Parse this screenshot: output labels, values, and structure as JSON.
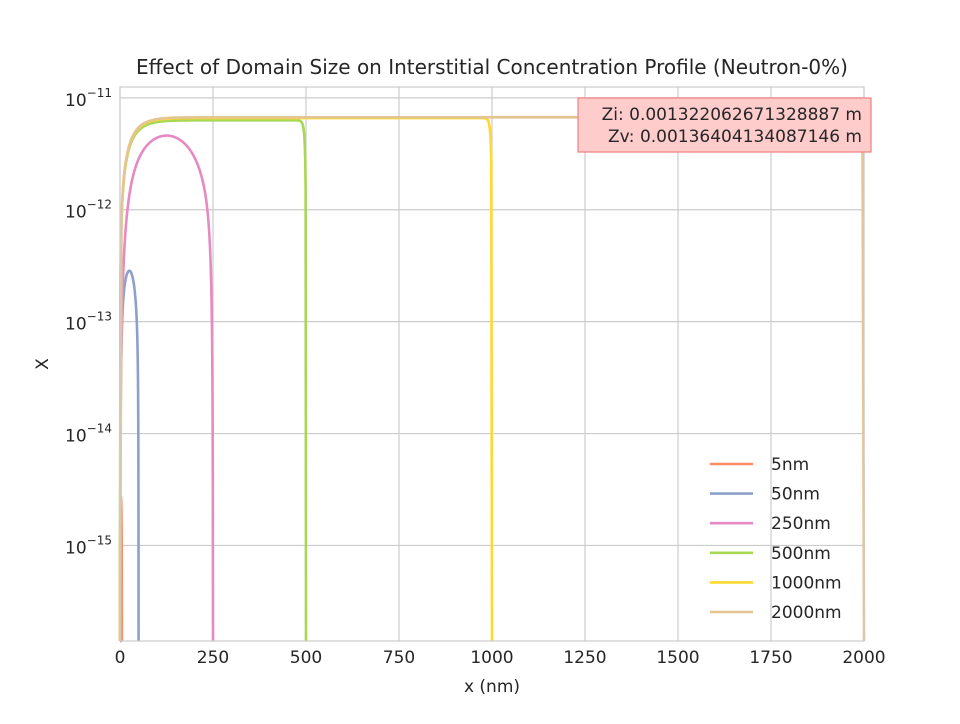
{
  "chart_data": {
    "type": "line",
    "title": "Effect of Domain Size on Interstitial Concentration Profile (Neutron-0%)",
    "xlabel": "x (nm)",
    "ylabel": "X",
    "xlim": [
      0,
      2000
    ],
    "ylim": [
      1.4e-16,
      1.25e-11
    ],
    "yscale": "log",
    "grid": true,
    "x_ticks": [
      "0",
      "250",
      "500",
      "750",
      "1000",
      "1250",
      "1500",
      "1750",
      "2000"
    ],
    "y_ticks": [
      {
        "base": "10",
        "exp": "−11",
        "value": 1e-11
      },
      {
        "base": "10",
        "exp": "−12",
        "value": 1e-12
      },
      {
        "base": "10",
        "exp": "−13",
        "value": 1e-13
      },
      {
        "base": "10",
        "exp": "−14",
        "value": 1e-14
      },
      {
        "base": "10",
        "exp": "−15",
        "value": 1e-15
      }
    ],
    "legend_position": "lower right",
    "annotation": {
      "lines": [
        "Zi: 0.001322062671328887 m",
        "Zv: 0.0013640413408714​6 m"
      ],
      "position": "upper right",
      "facecolor": "#ffcccc",
      "edgecolor": "#ef7f7f"
    },
    "series": [
      {
        "name": "5nm",
        "length": 5,
        "peak": 2.7e-15,
        "color": "#fc8d62"
      },
      {
        "name": "50nm",
        "length": 50,
        "peak": 2.85e-13,
        "color": "#8da0cb"
      },
      {
        "name": "250nm",
        "length": 250,
        "peak": 4.6e-12,
        "color": "#e78ac3"
      },
      {
        "name": "500nm",
        "length": 500,
        "peak": 6.3e-12,
        "color": "#a6d854"
      },
      {
        "name": "1000nm",
        "length": 1000,
        "peak": 6.6e-12,
        "color": "#ffd92f"
      },
      {
        "name": "2000nm",
        "length": 2000,
        "peak": 6.7e-12,
        "color": "#e5c494"
      }
    ]
  }
}
